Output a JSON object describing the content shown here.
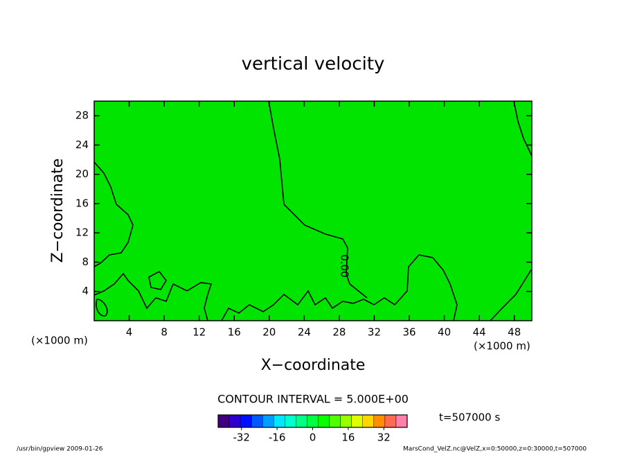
{
  "chart_data": {
    "type": "contour",
    "title": "vertical velocity",
    "x_label": "X−coordinate",
    "y_label": "Z−coordinate",
    "x_unit_label": "(×1000 m)",
    "y_unit_label": "(×1000 m)",
    "xlim": [
      0,
      50
    ],
    "xticks": [
      4,
      8,
      12,
      16,
      20,
      24,
      28,
      32,
      36,
      40,
      44,
      48
    ],
    "ylim": [
      0,
      30
    ],
    "yticks": [
      4,
      8,
      12,
      16,
      20,
      24,
      28
    ],
    "field_color": "#00e400",
    "contour_levels": [
      {
        "value": 0,
        "label": "0.00"
      }
    ],
    "contour_interval_text": "CONTOUR INTERVAL = 5.000E+00",
    "time_text": "t=507000 s",
    "colorbar": {
      "lim": [
        -42.5,
        42.5
      ],
      "step": 5,
      "ticks": [
        -32,
        -16,
        0,
        16,
        32
      ]
    },
    "footer_left": "/usr/bin/gpview  2009-01-26",
    "footer_right": "MarsCond_VelZ.nc@VelZ,x=0:50000,z=0:30000,t=507000"
  }
}
